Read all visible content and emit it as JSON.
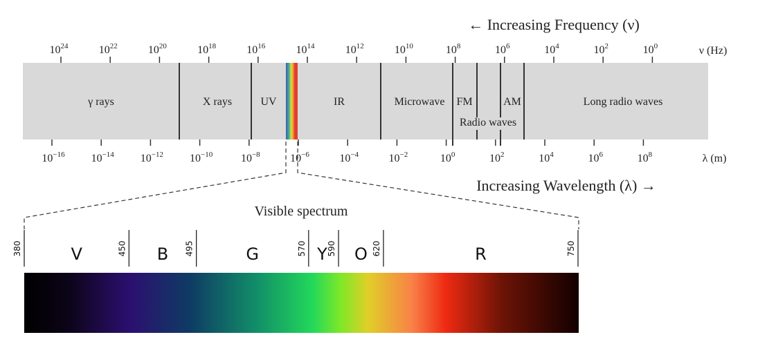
{
  "frequency_title": "← Increasing Frequency (ν)",
  "wavelength_title": "Increasing Wavelength (λ) →",
  "frequency_unit": "ν (Hz)",
  "wavelength_unit": "λ (m)",
  "frequency_exponents": [
    24,
    22,
    20,
    18,
    16,
    14,
    12,
    10,
    8,
    6,
    4,
    2,
    0
  ],
  "wavelength_exponents": [
    -16,
    -14,
    -12,
    -10,
    -8,
    -6,
    -4,
    -2,
    0,
    2,
    4,
    6,
    8
  ],
  "bands": [
    {
      "label": "γ rays"
    },
    {
      "label": "X rays"
    },
    {
      "label": "UV"
    },
    {
      "label": "IR"
    },
    {
      "label": "Microwave"
    },
    {
      "label": "FM"
    },
    {
      "label": "AM"
    },
    {
      "label": "Radio waves"
    },
    {
      "label": "Long radio waves"
    }
  ],
  "visible_title": "Visible spectrum",
  "visible_range_nm": [
    380,
    750
  ],
  "visible_boundaries_nm": [
    "380",
    "450",
    "495",
    "570",
    "590",
    "620",
    "750"
  ],
  "visible_colors": [
    {
      "label": "V",
      "from": 380,
      "to": 450
    },
    {
      "label": "B",
      "from": 450,
      "to": 495
    },
    {
      "label": "G",
      "from": 495,
      "to": 570
    },
    {
      "label": "Y",
      "from": 570,
      "to": 590
    },
    {
      "label": "O",
      "from": 590,
      "to": 620
    },
    {
      "label": "R",
      "from": 620,
      "to": 750
    }
  ],
  "colors": {
    "band": "#d9d9d9",
    "line": "#333333"
  }
}
